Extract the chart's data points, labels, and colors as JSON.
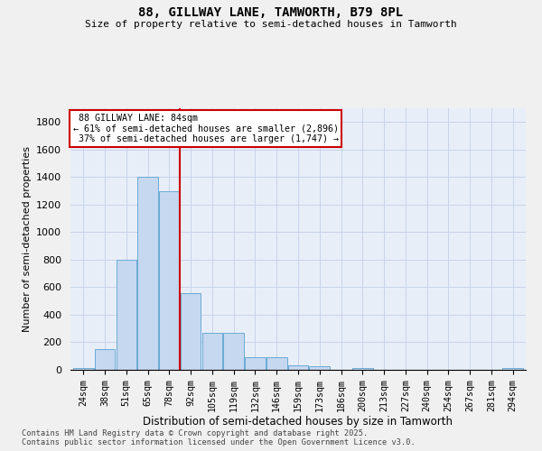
{
  "title1": "88, GILLWAY LANE, TAMWORTH, B79 8PL",
  "title2": "Size of property relative to semi-detached houses in Tamworth",
  "xlabel": "Distribution of semi-detached houses by size in Tamworth",
  "ylabel": "Number of semi-detached properties",
  "categories": [
    "24sqm",
    "38sqm",
    "51sqm",
    "65sqm",
    "78sqm",
    "92sqm",
    "105sqm",
    "119sqm",
    "132sqm",
    "146sqm",
    "159sqm",
    "173sqm",
    "186sqm",
    "200sqm",
    "213sqm",
    "227sqm",
    "240sqm",
    "254sqm",
    "267sqm",
    "281sqm",
    "294sqm"
  ],
  "values": [
    10,
    150,
    800,
    1400,
    1300,
    560,
    270,
    270,
    90,
    90,
    35,
    25,
    0,
    15,
    0,
    0,
    0,
    0,
    0,
    0,
    10
  ],
  "bar_color": "#c5d8f0",
  "bar_edge_color": "#6aaad4",
  "property_label": "88 GILLWAY LANE: 84sqm",
  "pct_smaller": 61,
  "n_smaller": "2,896",
  "pct_larger": 37,
  "n_larger": "1,747",
  "annotation_box_color": "#ffffff",
  "annotation_box_edge": "#cc0000",
  "vline_color": "#cc0000",
  "vline_x_index": 4.5,
  "ylim": [
    0,
    1900
  ],
  "yticks": [
    0,
    200,
    400,
    600,
    800,
    1000,
    1200,
    1400,
    1600,
    1800
  ],
  "grid_color": "#c8d4e8",
  "bg_color": "#e8eef8",
  "fig_bg": "#f0f0f0",
  "footer1": "Contains HM Land Registry data © Crown copyright and database right 2025.",
  "footer2": "Contains public sector information licensed under the Open Government Licence v3.0."
}
